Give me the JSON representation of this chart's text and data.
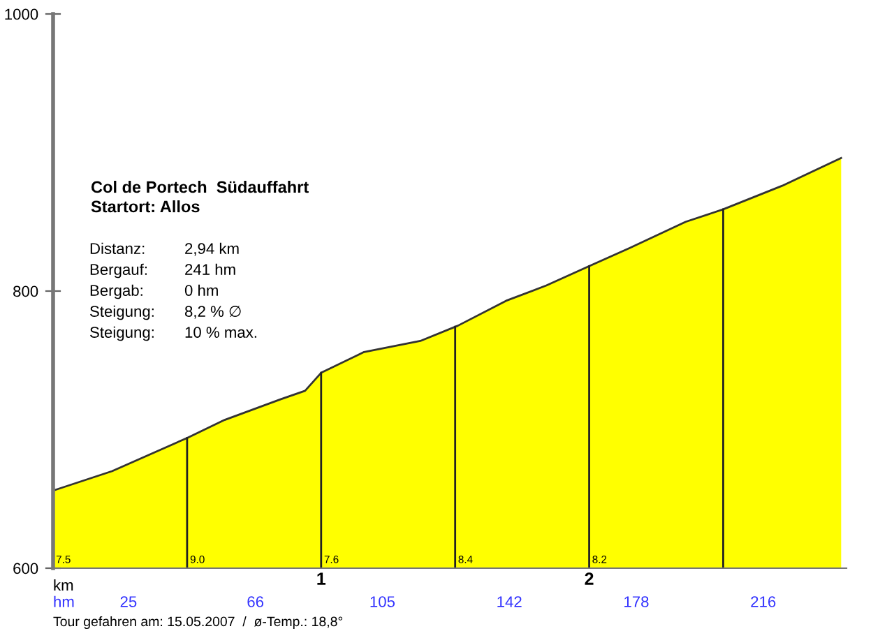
{
  "chart_data": {
    "type": "area",
    "title": "Col de Portech  Südauffahrt",
    "subtitle": "Startort: Allos",
    "xlabel": "km",
    "x": [
      0,
      0.22,
      0.5,
      0.64,
      0.85,
      0.94,
      1.0,
      1.16,
      1.37,
      1.51,
      1.69,
      1.84,
      2.0,
      2.15,
      2.36,
      2.5,
      2.72,
      2.94
    ],
    "series": [
      {
        "color": "#ffff00",
        "values": [
          656,
          670,
          694,
          707,
          722,
          728,
          741,
          756,
          764,
          775,
          793,
          804,
          818,
          831,
          850,
          859,
          876,
          896
        ]
      }
    ],
    "xlim": [
      0,
      2.96
    ],
    "xticks": [
      1,
      2
    ],
    "ylim": [
      600,
      1000
    ],
    "yticks": [
      600,
      800,
      1000
    ],
    "grid": false,
    "legend": false,
    "ref_lines": [
      {
        "axis": "x",
        "value": 0.5,
        "color": "#222222"
      },
      {
        "axis": "x",
        "value": 1.0,
        "color": "#222222"
      },
      {
        "axis": "x",
        "value": 1.5,
        "color": "#222222"
      },
      {
        "axis": "x",
        "value": 2.0,
        "color": "#222222"
      },
      {
        "axis": "x",
        "value": 2.5,
        "color": "#222222"
      }
    ],
    "annotations": [
      "Distanz: 2,94 km",
      "Bergauf: 241 hm",
      "Bergab: 0 hm",
      "Steigung: 8,2 % ∅",
      "Steigung: 10 % max.",
      {
        "text": "7.5",
        "x": 0,
        "y": 600
      },
      {
        "text": "9.0",
        "x": 0.5,
        "y": 600
      },
      {
        "text": "7.6",
        "x": 1.0,
        "y": 600
      },
      {
        "text": "8.4",
        "x": 1.5,
        "y": 600
      },
      {
        "text": "8.2",
        "x": 2.0,
        "y": 600
      },
      "hm",
      "25",
      "66",
      "105",
      "142",
      "178",
      "216",
      "Tour gefahren am: 15.05.2007  /  ø-Temp.: 18,8°"
    ]
  }
}
